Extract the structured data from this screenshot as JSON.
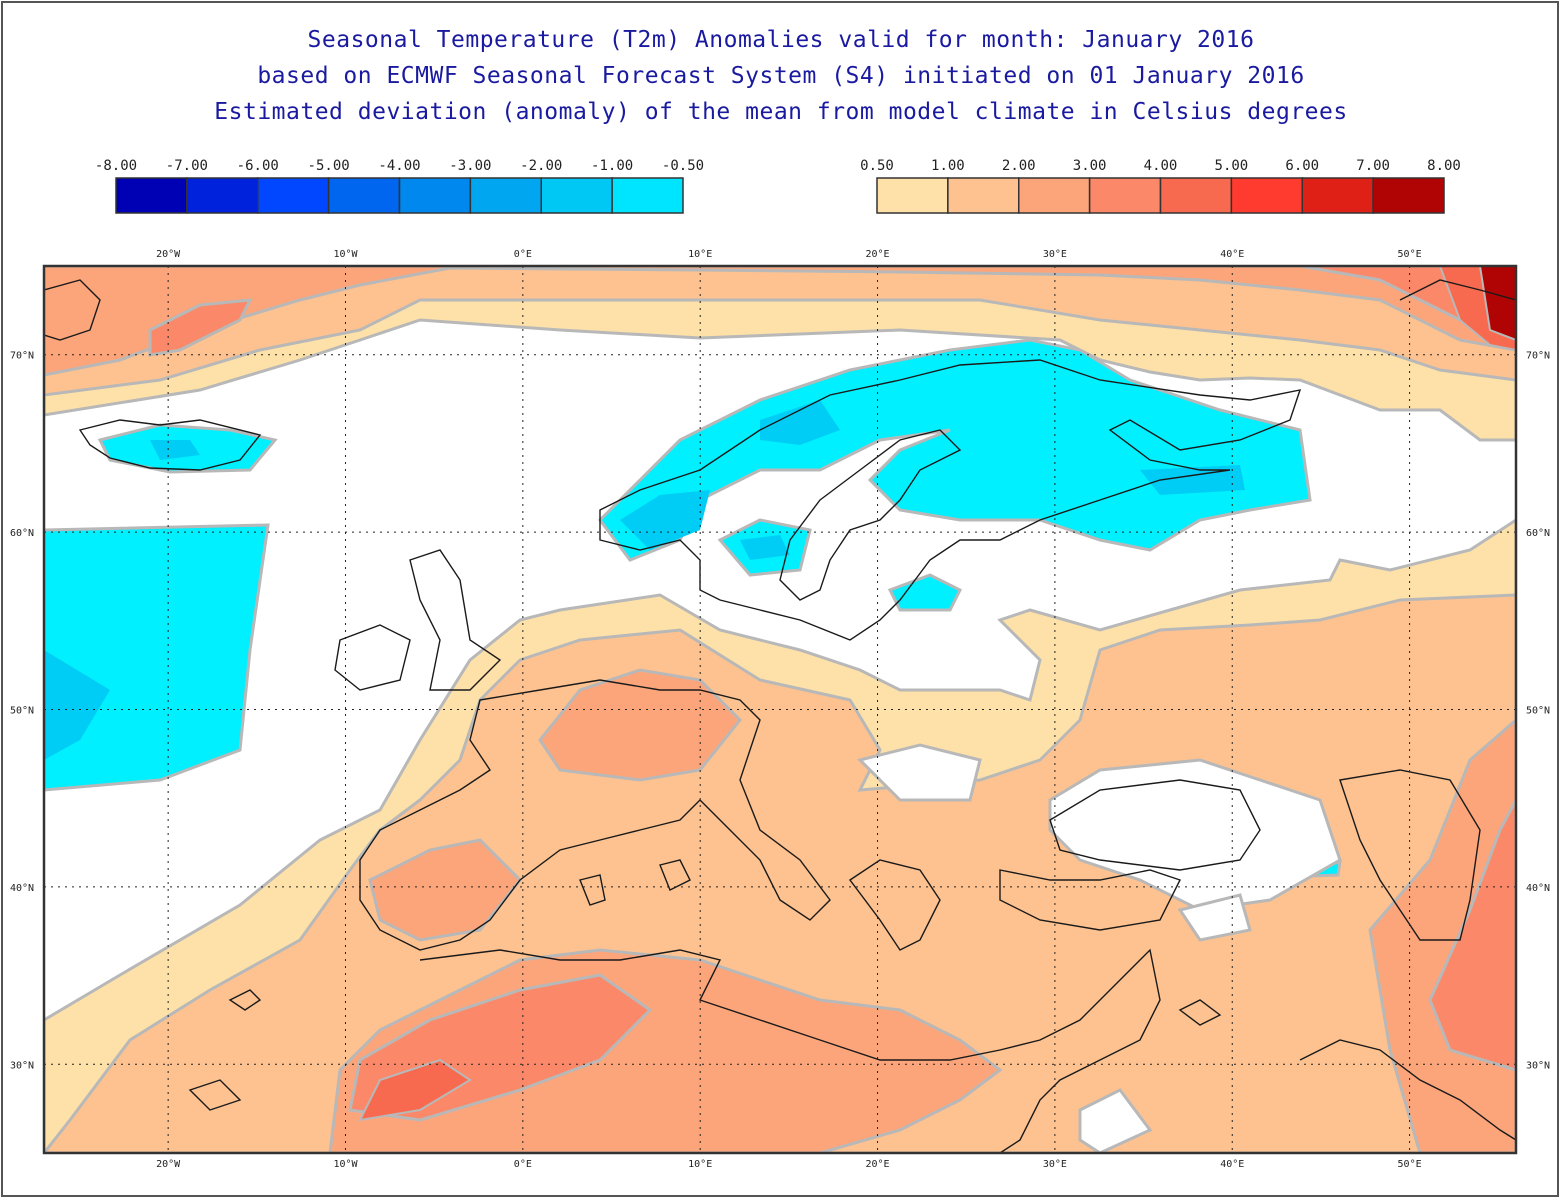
{
  "title": {
    "line1": "Seasonal Temperature (T2m) Anomalies valid for month: January 2016",
    "line2": "based on ECMWF Seasonal Forecast System (S4) initiated on 01 January 2016",
    "line3": "Estimated deviation (anomaly) of the mean from model climate in Celsius degrees"
  },
  "legend_cold": {
    "labels": [
      "-8.00",
      "-7.00",
      "-6.00",
      "-5.00",
      "-4.00",
      "-3.00",
      "-2.00",
      "-1.00",
      "-0.50"
    ],
    "colors": [
      "#0000b4",
      "#0022dd",
      "#0047ff",
      "#0066f0",
      "#0088ee",
      "#00a6f0",
      "#00c8f5",
      "#00e5ff"
    ]
  },
  "legend_warm": {
    "labels": [
      "0.50",
      "1.00",
      "2.00",
      "3.00",
      "4.00",
      "5.00",
      "6.00",
      "7.00",
      "8.00"
    ],
    "colors": [
      "#fde1a8",
      "#fdc290",
      "#fca57b",
      "#fb8868",
      "#f86a50",
      "#ff3a2e",
      "#de2016",
      "#b00404"
    ]
  },
  "map": {
    "lon_ticks": [
      "20°W",
      "10°W",
      "0°E",
      "10°E",
      "20°E",
      "30°E",
      "40°E",
      "50°E"
    ],
    "lat_ticks": [
      "70°N",
      "60°N",
      "50°N",
      "40°N",
      "30°N"
    ],
    "lon_values": [
      -20,
      -10,
      0,
      10,
      20,
      30,
      40,
      50
    ],
    "lat_values": [
      70,
      60,
      50,
      40,
      30
    ],
    "extent": {
      "lon_min": -27,
      "lon_max": 56,
      "lat_min": 25,
      "lat_max": 75
    }
  }
}
